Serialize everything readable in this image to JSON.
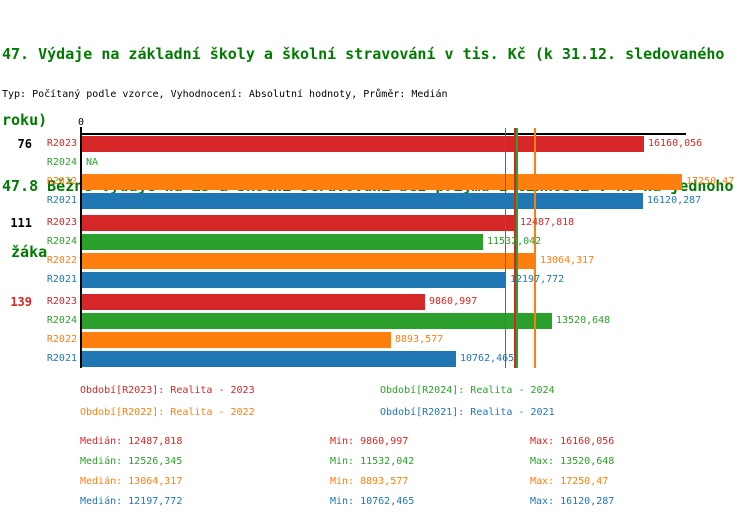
{
  "title": {
    "lines": [
      "47. Výdaje na základní školy a školní stravování v tis. Kč (k 31.12. sledovaného",
      "roku)",
      "47.8 Běžné výdaje na ZŠ a školní stravování bez příjmů z činnosti v Kč na jednoho",
      " žáka"
    ],
    "color": "#007a00"
  },
  "subtitle": "Typ: Počítaný podle vzorce, Vyhodnocení: Absolutní hodnoty, Průměr: Medián",
  "chart_data": {
    "type": "bar",
    "orientation": "horizontal",
    "x_axis": {
      "tick_label": "0",
      "min": 0,
      "max": 17400,
      "grid": false
    },
    "series": [
      {
        "id": "R2023",
        "label": "R2023",
        "color": "#d62728"
      },
      {
        "id": "R2024",
        "label": "R2024",
        "color": "#2ca02c"
      },
      {
        "id": "R2022",
        "label": "R2022",
        "color": "#ff7f0e"
      },
      {
        "id": "R2021",
        "label": "R2021",
        "color": "#1f77b4"
      }
    ],
    "groups": [
      {
        "label": "76",
        "label_color": "#000000",
        "bars": [
          {
            "series": "R2023",
            "value": 16160.056,
            "value_label": "16160,056"
          },
          {
            "series": "R2024",
            "value": null,
            "value_label": "NA"
          },
          {
            "series": "R2022",
            "value": 17250.47,
            "value_label": "17250,47"
          },
          {
            "series": "R2021",
            "value": 16120.287,
            "value_label": "16120,287"
          }
        ]
      },
      {
        "label": "111",
        "label_color": "#000000",
        "bars": [
          {
            "series": "R2023",
            "value": 12487.818,
            "value_label": "12487,818"
          },
          {
            "series": "R2024",
            "value": 11532.042,
            "value_label": "11532,042"
          },
          {
            "series": "R2022",
            "value": 13064.317,
            "value_label": "13064,317"
          },
          {
            "series": "R2021",
            "value": 12197.772,
            "value_label": "12197,772"
          }
        ]
      },
      {
        "label": "139",
        "label_color": "#d62728",
        "bars": [
          {
            "series": "R2023",
            "value": 9860.997,
            "value_label": "9860,997"
          },
          {
            "series": "R2024",
            "value": 13520.648,
            "value_label": "13520,648"
          },
          {
            "series": "R2022",
            "value": 8893.577,
            "value_label": "8893,577"
          },
          {
            "series": "R2021",
            "value": 10762.465,
            "value_label": "10762,465"
          }
        ]
      }
    ],
    "median_lines": [
      {
        "series": "R2021",
        "value": 12197.772,
        "color": "#1f77b4"
      },
      {
        "series": "R2023",
        "value": 12487.818,
        "color": "#d62728"
      },
      {
        "series": "R2024",
        "value": 12526.345,
        "color": "#2ca02c"
      },
      {
        "series": "R2022",
        "value": 13064.317,
        "color": "#ff7f0e"
      }
    ]
  },
  "legend": {
    "items": [
      {
        "series": "R2023",
        "label": "Období[R2023]: Realita - 2023",
        "color": "#d62728"
      },
      {
        "series": "R2024",
        "label": "Období[R2024]: Realita - 2024",
        "color": "#2ca02c"
      },
      {
        "series": "R2022",
        "label": "Období[R2022]: Realita - 2022",
        "color": "#ff7f0e"
      },
      {
        "series": "R2021",
        "label": "Období[R2021]: Realita - 2021",
        "color": "#1f77b4"
      }
    ]
  },
  "stats": {
    "rows": [
      {
        "series": "R2023",
        "color": "#d62728",
        "median": "Medián: 12487,818",
        "min": "Min: 9860,997",
        "max": "Max: 16160,056"
      },
      {
        "series": "R2024",
        "color": "#2ca02c",
        "median": "Medián: 12526,345",
        "min": "Min: 11532,042",
        "max": "Max: 13520,648"
      },
      {
        "series": "R2022",
        "color": "#ff7f0e",
        "median": "Medián: 13064,317",
        "min": "Min: 8893,577",
        "max": "Max: 17250,47"
      },
      {
        "series": "R2021",
        "color": "#1f77b4",
        "median": "Medián: 12197,772",
        "min": "Min: 10762,465",
        "max": "Max: 16120,287"
      }
    ]
  }
}
